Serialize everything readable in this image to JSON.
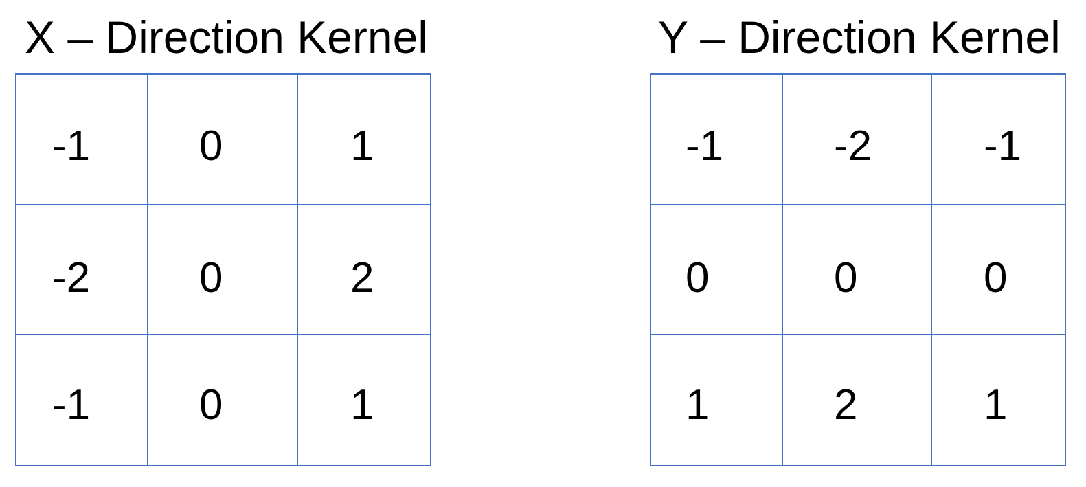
{
  "kernels": [
    {
      "title": "X – Direction Kernel",
      "values": [
        [
          "-1",
          "0",
          "1"
        ],
        [
          "-2",
          "0",
          "2"
        ],
        [
          "-1",
          "0",
          "1"
        ]
      ]
    },
    {
      "title": "Y – Direction Kernel",
      "values": [
        [
          "-1",
          "-2",
          "-1"
        ],
        [
          "0",
          "0",
          "0"
        ],
        [
          "1",
          "2",
          "1"
        ]
      ]
    }
  ],
  "colors": {
    "grid_line": "#4472C4",
    "text": "#000000",
    "background": "#FFFFFF"
  }
}
